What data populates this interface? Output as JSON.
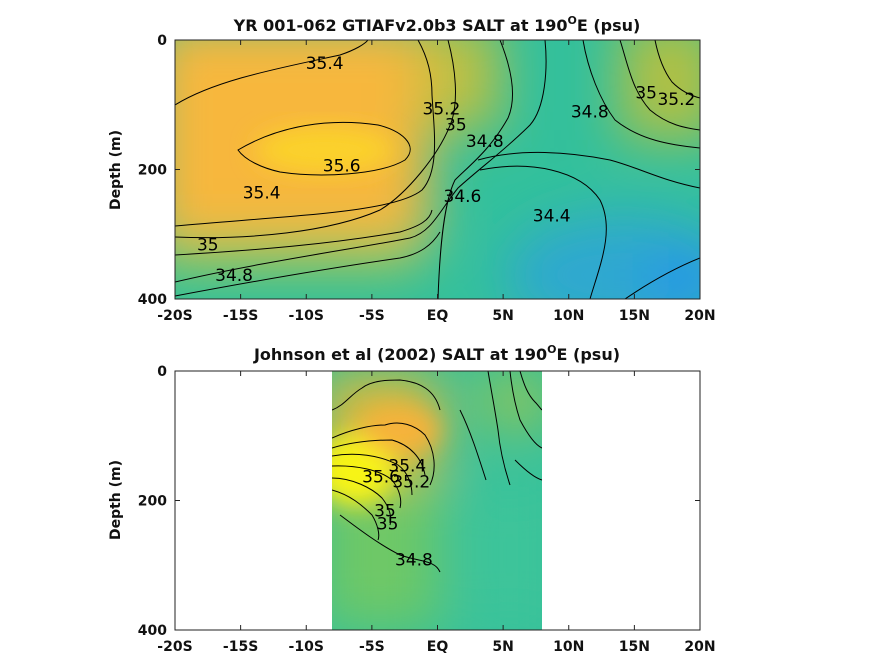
{
  "figure": {
    "name": "salinity-sections"
  },
  "chart_data": [
    {
      "type": "heatmap",
      "title_main": "YR 001-062 GTIAFv2.0b3 SALT at 190",
      "title_sup": "O",
      "title_tail": "E (psu)",
      "ylabel": "Depth (m)",
      "xlabel": "",
      "xticks": [
        "-20S",
        "-15S",
        "-10S",
        "-5S",
        "EQ",
        "5N",
        "10N",
        "15N",
        "20N"
      ],
      "yticks": [
        "0",
        "200",
        "400"
      ],
      "xlim": [
        -20,
        20
      ],
      "ylim": [
        400,
        0
      ],
      "colors": {
        "low": "#2a9be0",
        "mid": "#36c3a2",
        "high": "#fbb93a",
        "max": "#f8f414"
      },
      "data_extent": [
        -20,
        20
      ],
      "contour_labels": [
        {
          "text": "35.4",
          "x": -8.6,
          "depth": 45
        },
        {
          "text": "35.2",
          "x": 0.3,
          "depth": 115
        },
        {
          "text": "35",
          "x": 1.4,
          "depth": 140
        },
        {
          "text": "34.8",
          "x": 3.6,
          "depth": 165
        },
        {
          "text": "34.8",
          "x": 11.6,
          "depth": 120
        },
        {
          "text": "35",
          "x": 15.9,
          "depth": 90
        },
        {
          "text": "35.2",
          "x": 18.2,
          "depth": 100
        },
        {
          "text": "35.6",
          "x": -7.3,
          "depth": 203
        },
        {
          "text": "35.4",
          "x": -13.4,
          "depth": 245
        },
        {
          "text": "34.6",
          "x": 1.9,
          "depth": 250
        },
        {
          "text": "34.4",
          "x": 8.7,
          "depth": 280
        },
        {
          "text": "35",
          "x": -17.5,
          "depth": 325
        },
        {
          "text": "34.8",
          "x": -15.5,
          "depth": 372
        }
      ]
    },
    {
      "type": "heatmap",
      "title_main": "Johnson et al (2002) SALT at 190",
      "title_sup": "O",
      "title_tail": "E (psu)",
      "ylabel": "Depth (m)",
      "xlabel": "",
      "xticks": [
        "-20S",
        "-15S",
        "-10S",
        "-5S",
        "EQ",
        "5N",
        "10N",
        "15N",
        "20N"
      ],
      "yticks": [
        "0",
        "200",
        "400"
      ],
      "xlim": [
        -20,
        20
      ],
      "ylim": [
        400,
        0
      ],
      "colors": {
        "low": "#2a9be0",
        "mid": "#36c3a2",
        "high": "#fbb93a",
        "max": "#f8f414"
      },
      "data_extent": [
        -8,
        8
      ],
      "contour_labels": [
        {
          "text": "35.4",
          "x": -2.3,
          "depth": 155
        },
        {
          "text": "35.2",
          "x": -2.0,
          "depth": 180
        },
        {
          "text": "35.6",
          "x": -4.3,
          "depth": 172
        },
        {
          "text": "35",
          "x": -4.0,
          "depth": 225
        },
        {
          "text": "35",
          "x": -3.8,
          "depth": 245
        },
        {
          "text": "34.8",
          "x": -1.8,
          "depth": 300
        }
      ]
    }
  ]
}
